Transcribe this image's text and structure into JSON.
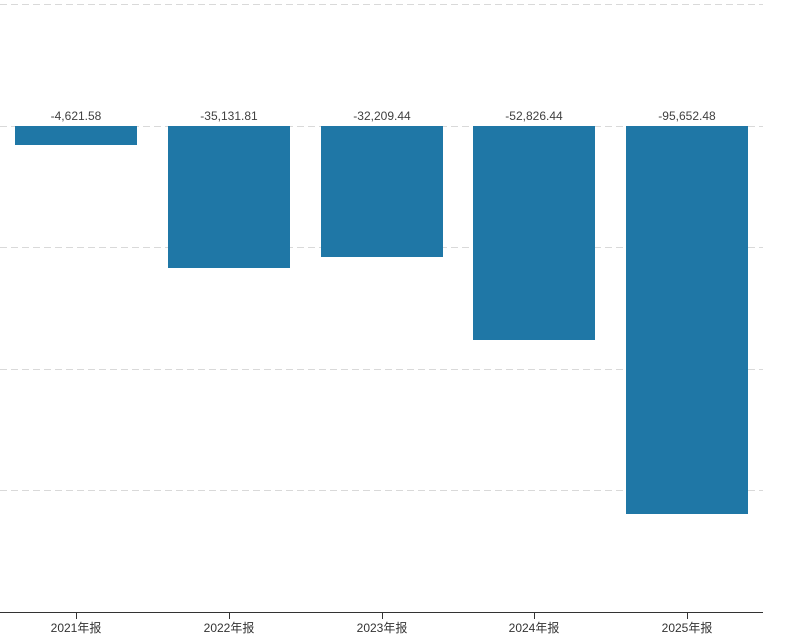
{
  "chart_data": {
    "type": "bar",
    "title": "",
    "categories": [
      "2021年报",
      "2022年报",
      "2023年报",
      "2024年报",
      "2025年报"
    ],
    "values": [
      -4621.58,
      -35131.81,
      -32209.44,
      -52826.44,
      -95652.48
    ],
    "value_labels": [
      "-4,621.58",
      "-35,131.81",
      "-32,209.44",
      "-52,826.44",
      "-95,652.48"
    ],
    "ylim": [
      -120000,
      30000
    ],
    "gridline_values": [
      30000,
      0,
      -30000,
      -60000,
      -90000
    ],
    "grid": "horizontal-dashed",
    "legend_position": "none",
    "xlabel": "",
    "ylabel": ""
  },
  "colors": {
    "bar_fill": "#1F77A6",
    "gridline": "#D9D9D9",
    "axis_line": "#333333",
    "value_label_text": "#404040",
    "category_label_text": "#333333",
    "background": "#FFFFFF"
  }
}
